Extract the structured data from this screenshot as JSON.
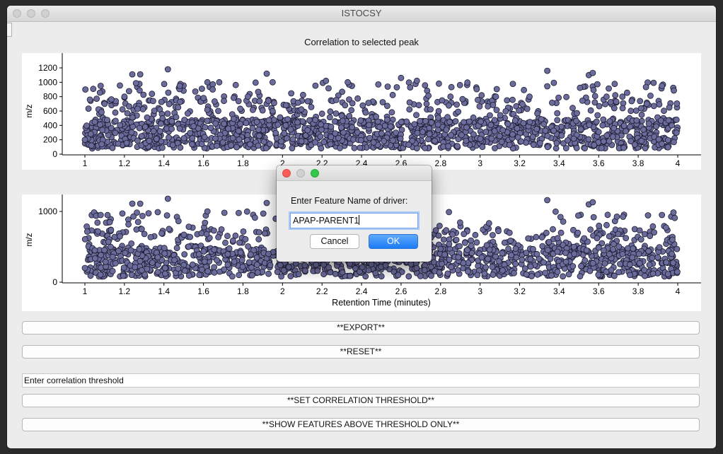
{
  "window": {
    "title": "ISTOCSY"
  },
  "chart_title": "Correlation to selected peak",
  "colors": {
    "marker_fill": "#6b6b9c",
    "marker_stroke": "#1a1a2e",
    "ok_button": "#1b7cf5"
  },
  "chart_data": [
    {
      "type": "scatter",
      "title": "Correlation to selected peak",
      "xlabel": "",
      "ylabel": "m/z",
      "xlim": [
        1,
        4
      ],
      "ylim": [
        0,
        1200
      ],
      "xticks": [
        "1",
        "1.2",
        "1.4",
        "1.6",
        "1.8",
        "2",
        "2.2",
        "2.4",
        "2.6",
        "2.8",
        "3",
        "3.2",
        "3.4",
        "3.6",
        "3.8",
        "4"
      ],
      "yticks": [
        "0",
        "200",
        "400",
        "600",
        "800",
        "1000",
        "1200"
      ],
      "marker_color": "#6b6b9c",
      "grid": false,
      "sampled_points": [
        [
          1.0,
          200
        ],
        [
          1.05,
          450
        ],
        [
          1.08,
          950
        ],
        [
          1.1,
          700
        ],
        [
          1.2,
          800
        ],
        [
          1.24,
          1110
        ],
        [
          1.28,
          1110
        ],
        [
          1.42,
          1180
        ],
        [
          1.48,
          950
        ],
        [
          1.62,
          1000
        ],
        [
          1.68,
          1000
        ],
        [
          1.92,
          1120
        ],
        [
          1.95,
          1000
        ],
        [
          2.22,
          1020
        ],
        [
          2.33,
          1000
        ],
        [
          2.6,
          1060
        ],
        [
          2.68,
          1020
        ],
        [
          2.85,
          800
        ],
        [
          3.08,
          800
        ],
        [
          3.25,
          800
        ],
        [
          3.34,
          1160
        ],
        [
          3.55,
          1100
        ],
        [
          3.57,
          1130
        ],
        [
          3.64,
          800
        ],
        [
          3.72,
          800
        ],
        [
          3.92,
          950
        ],
        [
          3.97,
          400
        ]
      ]
    },
    {
      "type": "scatter",
      "title": "",
      "xlabel": "Retention Time (minutes)",
      "ylabel": "m/z",
      "xlim": [
        1,
        4
      ],
      "ylim": [
        0,
        1200
      ],
      "xticks": [
        "1",
        "1.2",
        "1.4",
        "1.6",
        "1.8",
        "2",
        "2.2",
        "2.4",
        "2.6",
        "2.8",
        "3",
        "3.2",
        "3.4",
        "3.6",
        "3.8",
        "4"
      ],
      "yticks": [
        "0",
        "1000"
      ],
      "marker_color": "#6b6b9c",
      "grid": false,
      "sampled_points": [
        [
          1.0,
          200
        ],
        [
          1.05,
          450
        ],
        [
          1.08,
          950
        ],
        [
          1.24,
          1110
        ],
        [
          1.28,
          1110
        ],
        [
          1.42,
          1180
        ],
        [
          1.62,
          1000
        ],
        [
          1.92,
          1120
        ],
        [
          2.22,
          1020
        ],
        [
          2.6,
          1060
        ],
        [
          3.34,
          1160
        ],
        [
          3.55,
          1100
        ],
        [
          3.57,
          1130
        ],
        [
          3.92,
          950
        ],
        [
          3.97,
          400
        ]
      ]
    }
  ],
  "buttons": {
    "export": "**EXPORT**",
    "reset": "**RESET**",
    "set_threshold": "**SET CORRELATION THRESHOLD**",
    "show_above": "**SHOW FEATURES ABOVE THRESHOLD ONLY**"
  },
  "threshold_input": {
    "value": "Enter correlation threshold"
  },
  "dialog": {
    "prompt": "Enter Feature Name of driver:",
    "input_value": "APAP-PARENT1",
    "cancel_label": "Cancel",
    "ok_label": "OK"
  }
}
